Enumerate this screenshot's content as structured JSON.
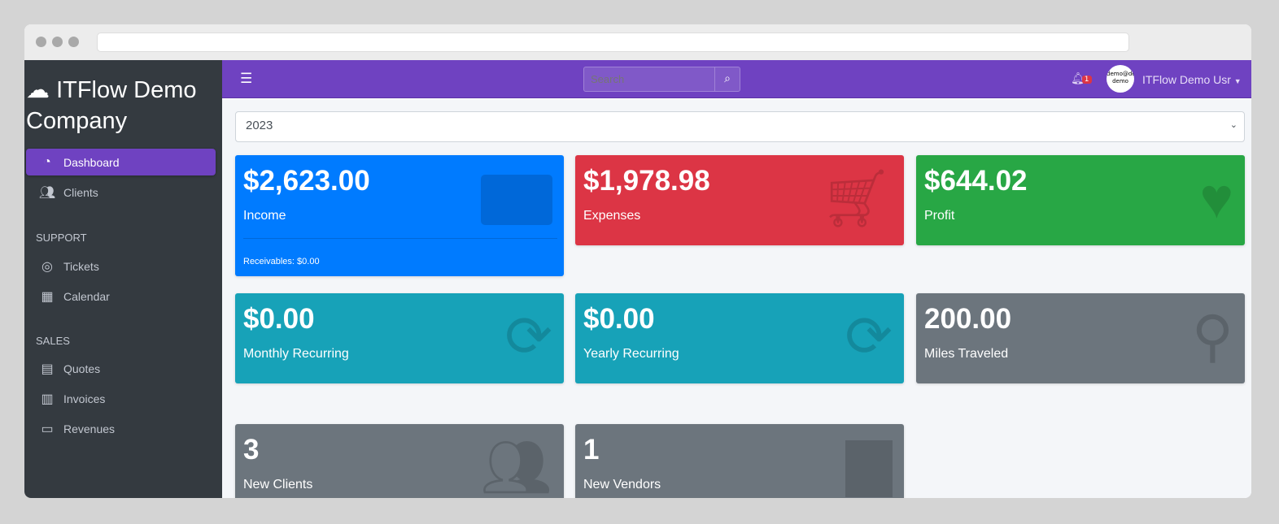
{
  "sidebar": {
    "brand": "ITFlow Demo Company",
    "items": [
      {
        "label": "Dashboard",
        "icon": "tachometer-icon"
      },
      {
        "label": "Clients",
        "icon": "users-icon"
      }
    ],
    "sections": [
      {
        "title": "SUPPORT",
        "items": [
          {
            "label": "Tickets",
            "icon": "life-ring-icon"
          },
          {
            "label": "Calendar",
            "icon": "calendar-icon"
          }
        ]
      },
      {
        "title": "SALES",
        "items": [
          {
            "label": "Quotes",
            "icon": "file-icon"
          },
          {
            "label": "Invoices",
            "icon": "invoice-icon"
          },
          {
            "label": "Revenues",
            "icon": "credit-card-icon"
          }
        ]
      }
    ]
  },
  "topbar": {
    "search_placeholder": "Search",
    "notification_count": "1",
    "avatar_text": "demo@demo demo",
    "user_name": "ITFlow Demo Usr"
  },
  "year_select": "2023",
  "cards": [
    {
      "value": "$2,623.00",
      "label": "Income",
      "footer": "Receivables: $0.00",
      "color": "#007bff"
    },
    {
      "value": "$1,978.98",
      "label": "Expenses",
      "color": "#dc3545"
    },
    {
      "value": "$644.02",
      "label": "Profit",
      "color": "#28a745"
    },
    {
      "value": "$0.00",
      "label": "Monthly Recurring",
      "color": "#17a2b8"
    },
    {
      "value": "$0.00",
      "label": "Yearly Recurring",
      "color": "#17a2b8"
    },
    {
      "value": "200.00",
      "label": "Miles Traveled",
      "color": "#6c757d"
    },
    {
      "value": "3",
      "label": "New Clients",
      "color": "#6c757d"
    },
    {
      "value": "1",
      "label": "New Vendors",
      "color": "#6c757d"
    }
  ]
}
